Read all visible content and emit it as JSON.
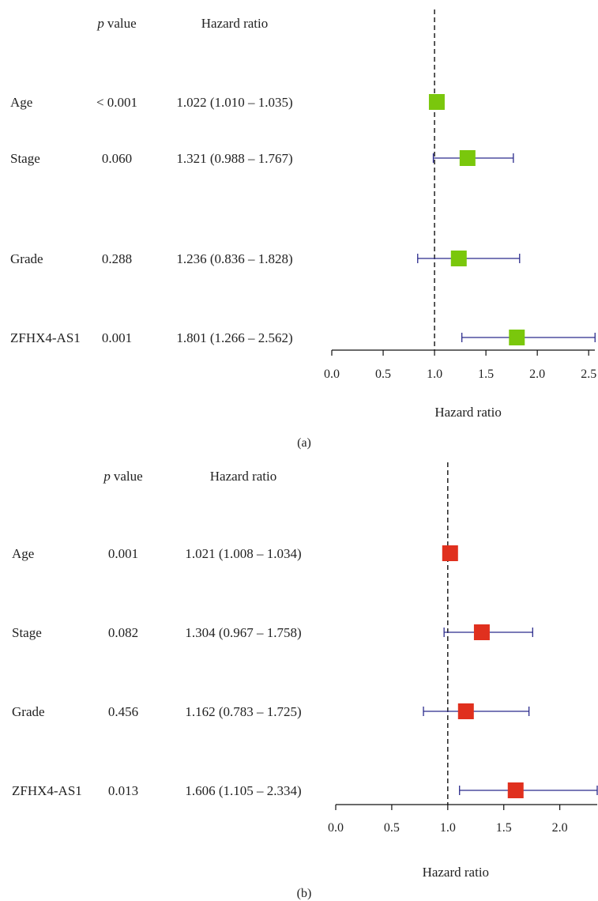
{
  "chart_data": [
    {
      "type": "forest",
      "panel_label": "(a)",
      "header_p": "value",
      "header_p_italic": "p",
      "header_hr": "Hazard ratio",
      "xlabel": "Hazard ratio",
      "xlim": [
        0,
        2.56
      ],
      "xticks": [
        0.0,
        0.5,
        1.0,
        1.5,
        2.0,
        2.5
      ],
      "xtick_labels": [
        "0.0",
        "0.5",
        "1.0",
        "1.5",
        "2.0",
        "2.5"
      ],
      "reference_line": 1.0,
      "marker_color": "#7ac70c",
      "ci_color": "#2b2b8c",
      "rows": [
        {
          "name": "Age",
          "p": "< 0.001",
          "hr_text": "1.022 (1.010 – 1.035)",
          "hr": 1.022,
          "lo": 1.01,
          "hi": 1.035
        },
        {
          "name": "Stage",
          "p": "0.060",
          "hr_text": "1.321 (0.988 – 1.767)",
          "hr": 1.321,
          "lo": 0.988,
          "hi": 1.767
        },
        {
          "name": "Grade",
          "p": "0.288",
          "hr_text": "1.236 (0.836 – 1.828)",
          "hr": 1.236,
          "lo": 0.836,
          "hi": 1.828
        },
        {
          "name": "ZFHX4-AS1",
          "p": "0.001",
          "hr_text": "1.801 (1.266 – 2.562)",
          "hr": 1.801,
          "lo": 1.266,
          "hi": 2.562
        }
      ]
    },
    {
      "type": "forest",
      "panel_label": "(b)",
      "header_p": "value",
      "header_p_italic": "p",
      "header_hr": "Hazard ratio",
      "xlabel": "Hazard ratio",
      "xlim": [
        0,
        2.334
      ],
      "xticks": [
        0.0,
        0.5,
        1.0,
        1.5,
        2.0
      ],
      "xtick_labels": [
        "0.0",
        "0.5",
        "1.0",
        "1.5",
        "2.0"
      ],
      "reference_line": 1.0,
      "marker_color": "#e0301e",
      "ci_color": "#2b2b8c",
      "rows": [
        {
          "name": "Age",
          "p": "0.001",
          "hr_text": "1.021 (1.008 – 1.034)",
          "hr": 1.021,
          "lo": 1.008,
          "hi": 1.034
        },
        {
          "name": "Stage",
          "p": "0.082",
          "hr_text": "1.304 (0.967 – 1.758)",
          "hr": 1.304,
          "lo": 0.967,
          "hi": 1.758
        },
        {
          "name": "Grade",
          "p": "0.456",
          "hr_text": "1.162 (0.783 – 1.725)",
          "hr": 1.162,
          "lo": 0.783,
          "hi": 1.725
        },
        {
          "name": "ZFHX4-AS1",
          "p": "0.013",
          "hr_text": "1.606 (1.105 – 2.334)",
          "hr": 1.606,
          "lo": 1.105,
          "hi": 2.334
        }
      ]
    }
  ]
}
